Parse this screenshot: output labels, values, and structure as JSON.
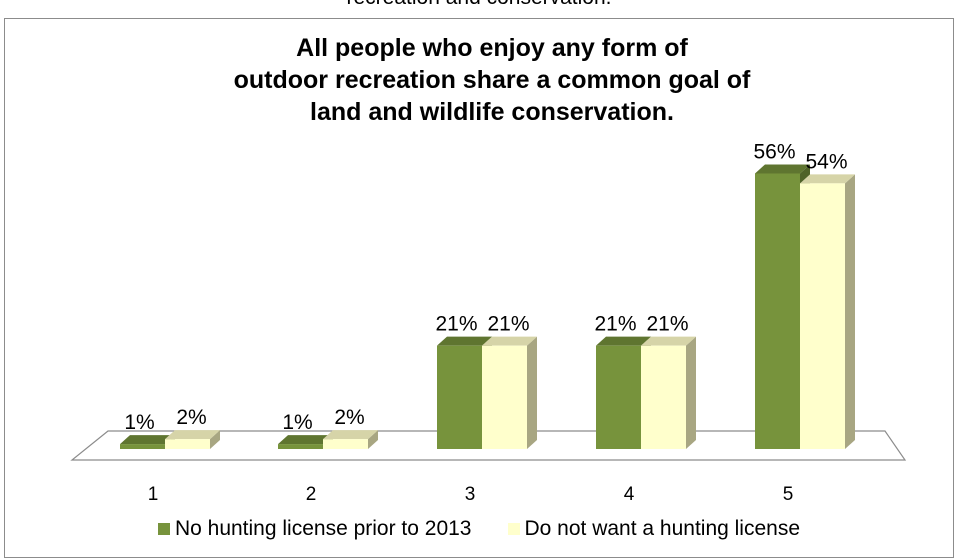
{
  "top_caption": "recreation and conservation.",
  "chart_data": {
    "type": "bar",
    "title": "All people who enjoy any form of outdoor recreation share a common goal of land and wildlife conservation.",
    "title_lines": [
      "All people who enjoy any form of",
      "outdoor recreation share a common goal of",
      "land and wildlife conservation."
    ],
    "categories": [
      "1",
      "2",
      "3",
      "4",
      "5"
    ],
    "series": [
      {
        "name": "No hunting license prior to 2013",
        "values": [
          1,
          1,
          21,
          21,
          56
        ],
        "labels": [
          "1%",
          "1%",
          "21%",
          "21%",
          "56%"
        ],
        "color": "#77933c",
        "side_color": "#4f6228",
        "top_color": "#5f7530"
      },
      {
        "name": "Do not want a hunting license",
        "values": [
          2,
          2,
          21,
          21,
          54
        ],
        "labels": [
          "2%",
          "2%",
          "21%",
          "21%",
          "54%"
        ],
        "color": "#ffffcc",
        "side_color": "#a8a682",
        "top_color": "#d6d4a8"
      }
    ],
    "ylim": [
      0,
      60
    ],
    "xlabel": "",
    "ylabel": "",
    "grid": false,
    "legend_position": "bottom",
    "style": "3d-clustered-column"
  }
}
